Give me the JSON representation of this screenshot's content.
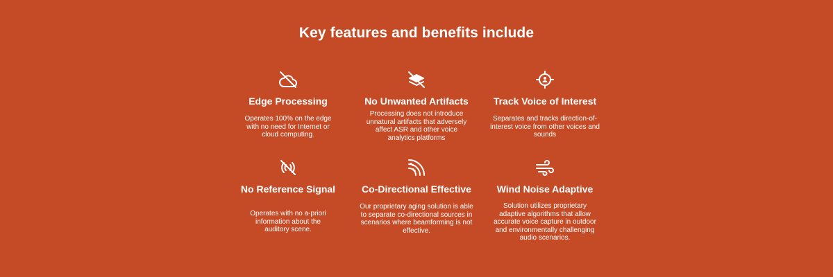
{
  "heading": "Key features and benefits include",
  "features": [
    {
      "icon": "cloud-off-icon",
      "title": "Edge Processing",
      "description": "Operates 100% on the edge with no need for Internet or cloud computing."
    },
    {
      "icon": "layers-off-icon",
      "title": "No Unwanted Artifacts",
      "description": "Processing does not introduce unnatural artifacts that adversely affect ASR and other voice analytics platforms"
    },
    {
      "icon": "target-person-icon",
      "title": "Track Voice of Interest",
      "description": "Separates and tracks direction-of-interest voice from other voices and sounds"
    },
    {
      "icon": "signal-off-icon",
      "title": "No Reference Signal",
      "description": "Operates with no a-priori information about the auditory scene."
    },
    {
      "icon": "directional-waves-icon",
      "title": "Co-Directional Effective",
      "description": "Our proprietary aging solution is able to separate co-directional sources in scenarios where beamforming is not effective."
    },
    {
      "icon": "wind-icon",
      "title": "Wind Noise Adaptive",
      "description": "Solution utilizes proprietary adaptive algorithms that allow accurate voice capture in outdoor and environmentally challenging audio scenarios."
    }
  ]
}
